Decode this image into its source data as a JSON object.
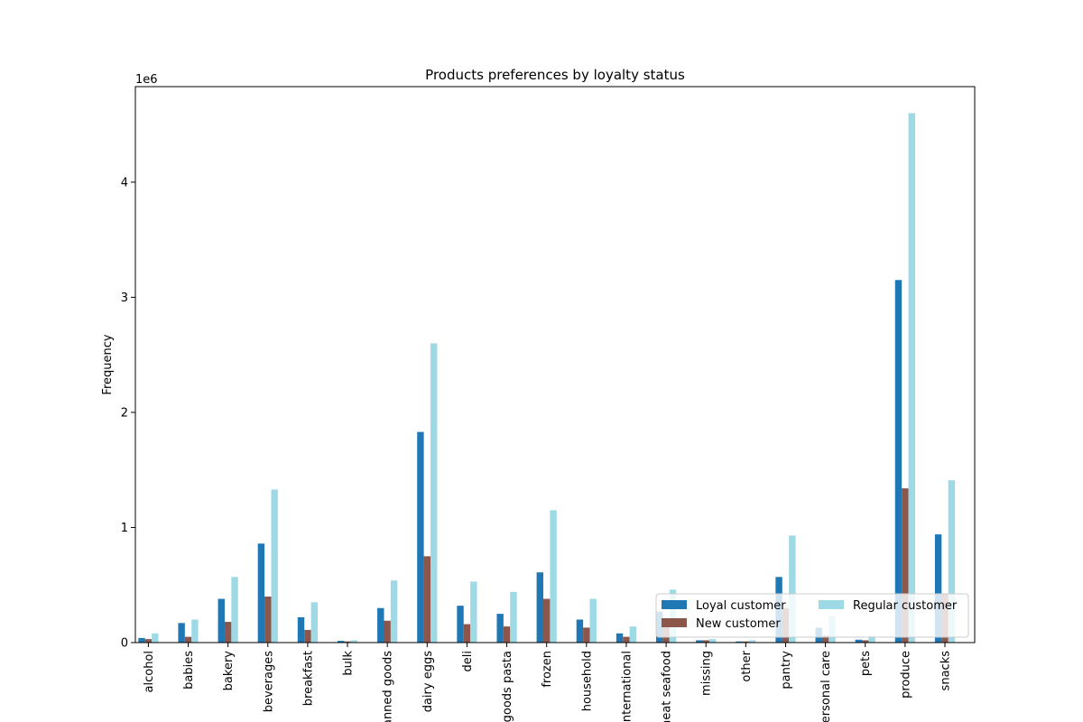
{
  "chart_data": {
    "type": "bar",
    "title": "Products preferences by loyalty status",
    "xlabel": "",
    "ylabel": "Frequency",
    "scale_note": "1e6",
    "ylim": [
      0,
      4.83
    ],
    "yticks": [
      0,
      1,
      2,
      3,
      4
    ],
    "categories": [
      "alcohol",
      "babies",
      "bakery",
      "beverages",
      "breakfast",
      "bulk",
      "canned goods",
      "dairy eggs",
      "deli",
      "dry goods pasta",
      "frozen",
      "household",
      "international",
      "meat seafood",
      "missing",
      "other",
      "pantry",
      "personal care",
      "pets",
      "produce",
      "snacks"
    ],
    "series": [
      {
        "name": "Loyal customer",
        "color": "#1f77b4",
        "values": [
          0.04,
          0.17,
          0.38,
          0.86,
          0.22,
          0.015,
          0.3,
          1.83,
          0.32,
          0.25,
          0.61,
          0.2,
          0.08,
          0.27,
          0.02,
          0.01,
          0.57,
          0.13,
          0.025,
          3.15,
          0.94
        ]
      },
      {
        "name": "New customer",
        "color": "#8c564b",
        "values": [
          0.03,
          0.05,
          0.18,
          0.4,
          0.11,
          0.01,
          0.19,
          0.75,
          0.16,
          0.14,
          0.38,
          0.13,
          0.05,
          0.14,
          0.02,
          0.01,
          0.3,
          0.06,
          0.02,
          1.34,
          0.42
        ]
      },
      {
        "name": "Regular customer",
        "color": "#9edae5",
        "values": [
          0.08,
          0.2,
          0.57,
          1.33,
          0.35,
          0.02,
          0.54,
          2.6,
          0.53,
          0.44,
          1.15,
          0.38,
          0.14,
          0.46,
          0.03,
          0.02,
          0.93,
          0.23,
          0.06,
          4.6,
          1.41
        ]
      }
    ],
    "legend": {
      "placement": "lower-right",
      "columns": 2
    },
    "grid": false
  }
}
